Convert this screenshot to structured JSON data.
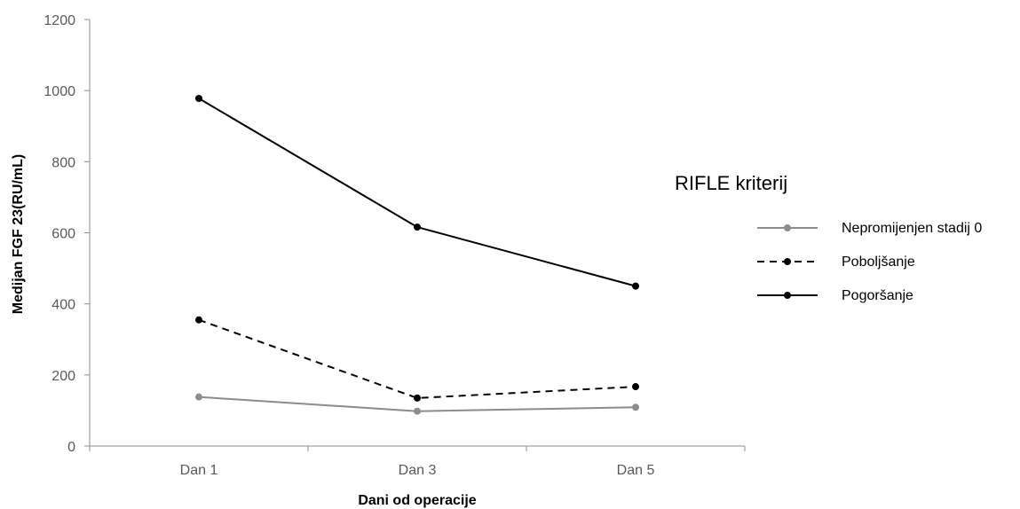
{
  "chart_data": {
    "type": "line",
    "categories": [
      "Dan 1",
      "Dan 3",
      "Dan 5"
    ],
    "xlabel": "Dani od operacije",
    "ylabel": "Medijan FGF 23(RU/mL)",
    "ylim": [
      0,
      1200
    ],
    "yticks": [
      0,
      200,
      400,
      600,
      800,
      1000,
      1200
    ],
    "grid": false,
    "legend": {
      "title": "RIFLE kriterij",
      "placement": "right"
    },
    "series": [
      {
        "name": "Nepromijenjen stadij 0",
        "values": [
          138,
          98,
          109
        ],
        "color": "#8c8c8c",
        "style": "solid"
      },
      {
        "name": "Poboljšanje",
        "values": [
          355,
          135,
          167
        ],
        "color": "#000000",
        "style": "dashed"
      },
      {
        "name": "Pogoršanje",
        "values": [
          978,
          616,
          450
        ],
        "color": "#000000",
        "style": "solid"
      }
    ]
  }
}
